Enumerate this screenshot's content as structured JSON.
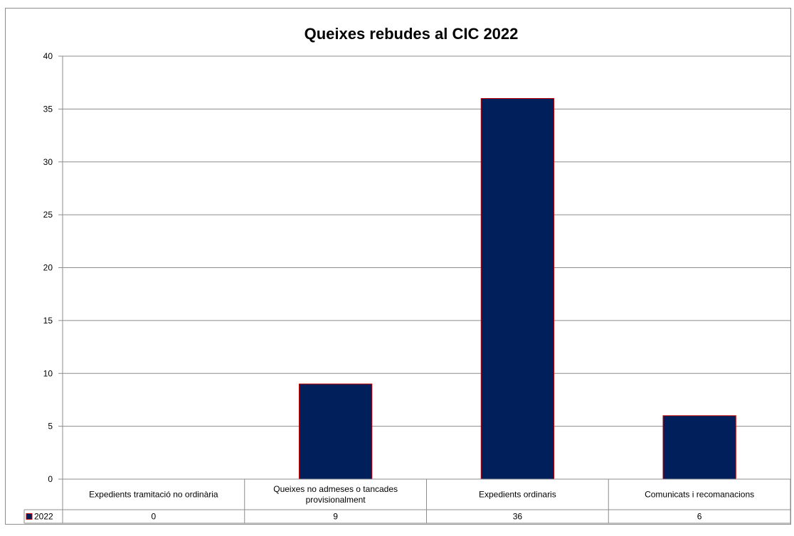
{
  "chart_data": {
    "type": "bar",
    "title": "Queixes rebudes al CIC 2022",
    "categories": [
      "Expedients tramitació no ordinària",
      "Queixes no admeses o tancades provisionalment",
      "Expedients ordinaris",
      "Comunicats i recomanacions"
    ],
    "category_lines": [
      [
        "Expedients tramitació no ordinària"
      ],
      [
        "Queixes no admeses o tancades",
        "provisionalment"
      ],
      [
        "Expedients ordinaris"
      ],
      [
        "Comunicats i recomanacions"
      ]
    ],
    "series": [
      {
        "name": "2022",
        "values": [
          0,
          9,
          36,
          6
        ],
        "color": "#001f5b",
        "edge_color": "#c00000"
      }
    ],
    "ylim": [
      0,
      40
    ],
    "yticks": [
      "0",
      "5",
      "10",
      "15",
      "20",
      "25",
      "30",
      "35",
      "40"
    ],
    "grid": true,
    "legend": "data-table",
    "xlabel": "",
    "ylabel": ""
  }
}
